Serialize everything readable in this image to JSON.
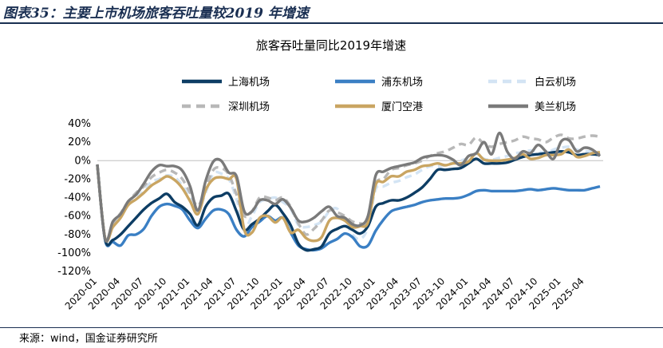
{
  "figure_title": "图表35：主要上市机场旅客吞吐量较2019 年增速",
  "source_note": "来源：wind，国金证券研究所",
  "chart_data": {
    "type": "line",
    "title": "旅客吞吐量同比2019年增速",
    "xlabel": "",
    "ylabel": "",
    "ylim": [
      -1.2,
      0.4
    ],
    "yticks": [
      -1.2,
      -1.0,
      -0.8,
      -0.6,
      -0.4,
      -0.2,
      0.0,
      0.2,
      0.4
    ],
    "ytick_labels": [
      "-120%",
      "-100%",
      "-80%",
      "-60%",
      "-40%",
      "-20%",
      "0%",
      "20%",
      "40%"
    ],
    "xtick_labels": [
      "2020-01",
      "2020-04",
      "2020-07",
      "2020-10",
      "2021-01",
      "2021-04",
      "2021-07",
      "2021-10",
      "2022-01",
      "2022-04",
      "2022-07",
      "2022-10",
      "2023-01",
      "2023-04",
      "2023-07",
      "2023-10",
      "2024-01",
      "2024-04",
      "2024-07",
      "2024-10",
      "2025-01",
      "2025-04"
    ],
    "x": [
      "2020-01",
      "2020-02",
      "2020-03",
      "2020-04",
      "2020-05",
      "2020-06",
      "2020-07",
      "2020-08",
      "2020-09",
      "2020-10",
      "2020-11",
      "2020-12",
      "2021-01",
      "2021-02",
      "2021-03",
      "2021-04",
      "2021-05",
      "2021-06",
      "2021-07",
      "2021-08",
      "2021-09",
      "2021-10",
      "2021-11",
      "2021-12",
      "2022-01",
      "2022-02",
      "2022-03",
      "2022-04",
      "2022-05",
      "2022-06",
      "2022-07",
      "2022-08",
      "2022-09",
      "2022-10",
      "2022-11",
      "2022-12",
      "2023-01",
      "2023-02",
      "2023-03",
      "2023-04",
      "2023-05",
      "2023-06",
      "2023-07",
      "2023-08",
      "2023-09",
      "2023-10",
      "2023-11",
      "2023-12",
      "2024-01",
      "2024-02",
      "2024-03",
      "2024-04",
      "2024-05",
      "2024-06",
      "2024-07",
      "2024-08",
      "2024-09",
      "2024-10",
      "2024-11",
      "2024-12",
      "2025-01",
      "2025-02",
      "2025-03",
      "2025-04",
      "2025-05",
      "2025-06"
    ],
    "legend_position": "top",
    "legend_columns": 3,
    "series": [
      {
        "name": "上海机场",
        "color": "#0d3d64",
        "dash": "solid",
        "values": [
          -0.05,
          -0.85,
          -0.86,
          -0.8,
          -0.71,
          -0.62,
          -0.53,
          -0.46,
          -0.41,
          -0.36,
          -0.45,
          -0.5,
          -0.58,
          -0.7,
          -0.5,
          -0.4,
          -0.38,
          -0.36,
          -0.55,
          -0.75,
          -0.69,
          -0.63,
          -0.55,
          -0.48,
          -0.57,
          -0.7,
          -0.9,
          -0.97,
          -0.96,
          -0.93,
          -0.79,
          -0.74,
          -0.71,
          -0.75,
          -0.79,
          -0.71,
          -0.5,
          -0.46,
          -0.43,
          -0.43,
          -0.4,
          -0.35,
          -0.29,
          -0.2,
          -0.1,
          -0.1,
          -0.09,
          -0.08,
          -0.03,
          0.02,
          -0.03,
          -0.03,
          -0.03,
          -0.02,
          0.01,
          0.04,
          0.06,
          0.07,
          0.08,
          0.09,
          0.1,
          0.09,
          0.06,
          0.07,
          0.07,
          0.06
        ]
      },
      {
        "name": "浦东机场",
        "color": "#3a7fc4",
        "dash": "solid",
        "values": [
          -0.05,
          -0.86,
          -0.88,
          -0.92,
          -0.81,
          -0.8,
          -0.74,
          -0.6,
          -0.5,
          -0.47,
          -0.49,
          -0.53,
          -0.65,
          -0.73,
          -0.63,
          -0.54,
          -0.53,
          -0.58,
          -0.75,
          -0.82,
          -0.72,
          -0.66,
          -0.6,
          -0.65,
          -0.62,
          -0.78,
          -0.92,
          -0.96,
          -0.97,
          -0.95,
          -0.89,
          -0.85,
          -0.79,
          -0.83,
          -0.93,
          -0.92,
          -0.76,
          -0.64,
          -0.55,
          -0.52,
          -0.5,
          -0.48,
          -0.45,
          -0.43,
          -0.42,
          -0.41,
          -0.41,
          -0.4,
          -0.37,
          -0.33,
          -0.32,
          -0.33,
          -0.33,
          -0.33,
          -0.33,
          -0.32,
          -0.31,
          -0.32,
          -0.31,
          -0.3,
          -0.31,
          -0.32,
          -0.32,
          -0.32,
          -0.3,
          -0.28
        ]
      },
      {
        "name": "白云机场",
        "color": "#d3e4f4",
        "dash": "dash",
        "values": [
          -0.05,
          -0.84,
          -0.7,
          -0.6,
          -0.48,
          -0.4,
          -0.33,
          -0.23,
          -0.2,
          -0.16,
          -0.18,
          -0.27,
          -0.39,
          -0.55,
          -0.35,
          -0.14,
          -0.14,
          -0.2,
          -0.42,
          -0.72,
          -0.6,
          -0.45,
          -0.42,
          -0.4,
          -0.45,
          -0.52,
          -0.7,
          -0.72,
          -0.7,
          -0.66,
          -0.55,
          -0.52,
          -0.65,
          -0.8,
          -0.85,
          -0.72,
          -0.31,
          -0.28,
          -0.24,
          -0.22,
          -0.18,
          -0.15,
          -0.1,
          -0.06,
          -0.06,
          -0.05,
          -0.02,
          0.0,
          0.03,
          0.08,
          0.02,
          0.01,
          0.03,
          0.05,
          0.08,
          0.09,
          0.11,
          0.1,
          0.08,
          0.12,
          0.14,
          0.15,
          0.12,
          0.1,
          0.1,
          0.09
        ]
      },
      {
        "name": "深圳机场",
        "color": "#b8b8b8",
        "dash": "dash",
        "values": [
          -0.04,
          -0.85,
          -0.68,
          -0.57,
          -0.45,
          -0.35,
          -0.28,
          -0.18,
          -0.13,
          -0.1,
          -0.13,
          -0.2,
          -0.35,
          -0.49,
          -0.3,
          -0.1,
          -0.08,
          -0.15,
          -0.37,
          -0.6,
          -0.55,
          -0.4,
          -0.4,
          -0.43,
          -0.4,
          -0.5,
          -0.68,
          -0.8,
          -0.74,
          -0.65,
          -0.54,
          -0.56,
          -0.6,
          -0.66,
          -0.68,
          -0.65,
          -0.25,
          -0.2,
          -0.1,
          -0.08,
          -0.05,
          -0.03,
          0.0,
          0.05,
          0.08,
          0.1,
          0.14,
          0.18,
          0.17,
          0.25,
          0.18,
          0.15,
          0.18,
          0.2,
          0.22,
          0.26,
          0.24,
          0.23,
          0.2,
          0.25,
          0.28,
          0.24,
          0.24,
          0.26,
          0.27,
          0.26
        ]
      },
      {
        "name": "厦门空港",
        "color": "#c9a562",
        "dash": "solid",
        "values": [
          -0.05,
          -0.84,
          -0.72,
          -0.62,
          -0.48,
          -0.42,
          -0.35,
          -0.27,
          -0.22,
          -0.17,
          -0.21,
          -0.3,
          -0.44,
          -0.58,
          -0.32,
          -0.2,
          -0.18,
          -0.2,
          -0.2,
          -0.75,
          -0.78,
          -0.62,
          -0.6,
          -0.67,
          -0.62,
          -0.78,
          -0.75,
          -0.84,
          -0.87,
          -0.83,
          -0.65,
          -0.62,
          -0.65,
          -0.72,
          -0.71,
          -0.67,
          -0.26,
          -0.23,
          -0.17,
          -0.17,
          -0.12,
          -0.1,
          -0.06,
          -0.05,
          -0.03,
          -0.05,
          -0.03,
          -0.03,
          -0.01,
          0.08,
          0.01,
          0.0,
          0.0,
          0.01,
          0.03,
          0.07,
          0.02,
          0.03,
          0.06,
          0.06,
          0.07,
          0.12,
          0.04,
          0.05,
          0.08,
          0.09
        ]
      },
      {
        "name": "美兰机场",
        "color": "#7a7a7a",
        "dash": "solid",
        "values": [
          -0.04,
          -0.85,
          -0.66,
          -0.58,
          -0.44,
          -0.37,
          -0.25,
          -0.12,
          -0.05,
          -0.06,
          -0.06,
          -0.11,
          -0.28,
          -0.54,
          -0.22,
          -0.01,
          0.0,
          -0.13,
          -0.17,
          -0.55,
          -0.55,
          -0.43,
          -0.43,
          -0.47,
          -0.42,
          -0.51,
          -0.65,
          -0.66,
          -0.62,
          -0.55,
          -0.5,
          -0.6,
          -0.62,
          -0.69,
          -0.7,
          -0.6,
          -0.16,
          -0.12,
          -0.08,
          -0.06,
          -0.04,
          -0.02,
          0.03,
          0.05,
          0.06,
          0.05,
          0.01,
          -0.05,
          0.05,
          0.08,
          0.2,
          0.07,
          0.3,
          0.1,
          0.02,
          0.1,
          0.08,
          0.17,
          0.1,
          0.02,
          0.21,
          0.22,
          0.1,
          0.14,
          0.12,
          0.05
        ]
      }
    ]
  }
}
